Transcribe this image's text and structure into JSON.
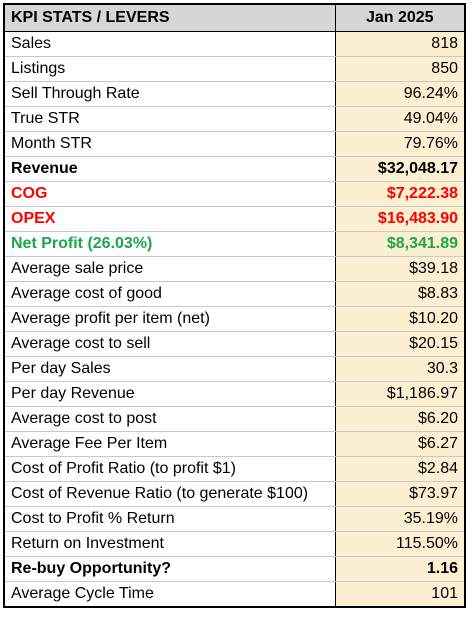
{
  "header": {
    "label": "KPI STATS / LEVERS",
    "month": "Jan 2025"
  },
  "colors": {
    "header_bg": "#d6d6d6",
    "value_bg": "#fcefd2",
    "negative": "#ff0000",
    "positive": "#1aa84b"
  },
  "rows": [
    {
      "label": "Sales",
      "value": "818",
      "style": ""
    },
    {
      "label": "Listings",
      "value": "850",
      "style": ""
    },
    {
      "label": "Sell Through Rate",
      "value": "96.24%",
      "style": ""
    },
    {
      "label": "True STR",
      "value": "49.04%",
      "style": ""
    },
    {
      "label": "Month STR",
      "value": "79.76%",
      "style": ""
    },
    {
      "label": "Revenue",
      "value": "$32,048.17",
      "style": "bold"
    },
    {
      "label": "COG",
      "value": "$7,222.38",
      "style": "red"
    },
    {
      "label": "OPEX",
      "value": "$16,483.90",
      "style": "red"
    },
    {
      "label": "Net Profit (26.03%)",
      "value": "$8,341.89",
      "style": "green"
    },
    {
      "label": "Average sale price",
      "value": "$39.18",
      "style": ""
    },
    {
      "label": "Average cost of good",
      "value": "$8.83",
      "style": ""
    },
    {
      "label": "Average profit per item (net)",
      "value": "$10.20",
      "style": ""
    },
    {
      "label": "Average cost to sell",
      "value": "$20.15",
      "style": ""
    },
    {
      "label": "Per day Sales",
      "value": "30.3",
      "style": ""
    },
    {
      "label": "Per day Revenue",
      "value": "$1,186.97",
      "style": ""
    },
    {
      "label": "Average cost to post",
      "value": "$6.20",
      "style": ""
    },
    {
      "label": "Average Fee Per Item",
      "value": "$6.27",
      "style": ""
    },
    {
      "label": "Cost of Profit Ratio (to profit $1)",
      "value": "$2.84",
      "style": ""
    },
    {
      "label": "Cost of Revenue Ratio (to generate $100)",
      "value": "$73.97",
      "style": ""
    },
    {
      "label": "Cost to Profit % Return",
      "value": "35.19%",
      "style": ""
    },
    {
      "label": "Return on Investment",
      "value": "115.50%",
      "style": ""
    },
    {
      "label": "Re-buy Opportunity?",
      "value": "1.16",
      "style": "bold"
    },
    {
      "label": "Average Cycle Time",
      "value": "101",
      "style": ""
    }
  ]
}
